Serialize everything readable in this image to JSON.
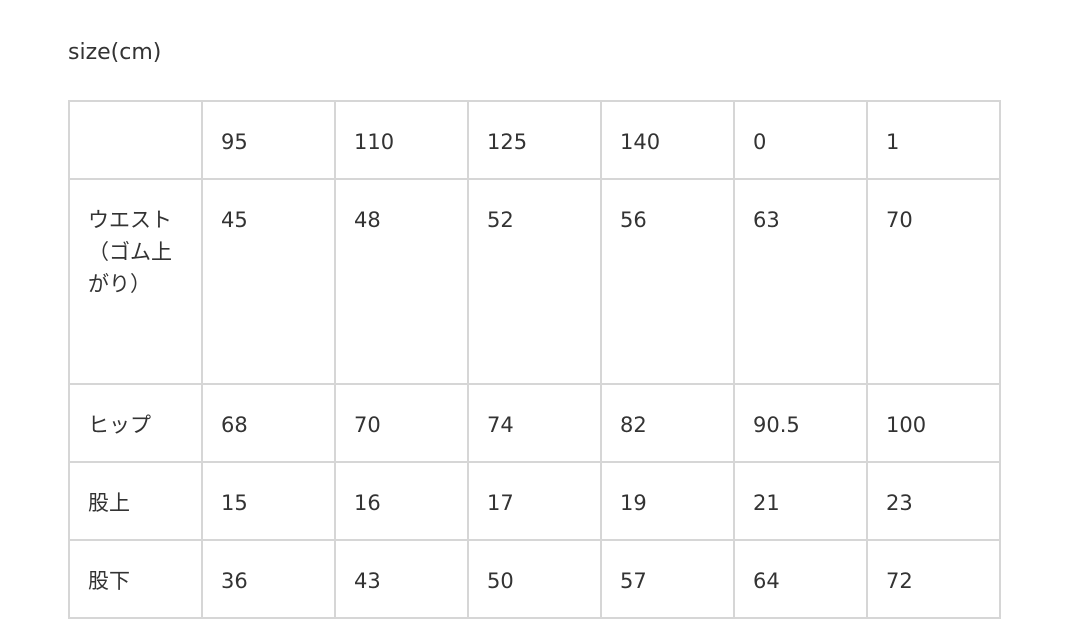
{
  "title": "size(cm)",
  "table": {
    "header": [
      "",
      "95",
      "110",
      "125",
      "140",
      "0",
      "1"
    ],
    "rows": [
      {
        "label": "ウエスト（ゴム上がり）",
        "values": [
          "45",
          "48",
          "52",
          "56",
          "63",
          "70"
        ]
      },
      {
        "label": "ヒップ",
        "values": [
          "68",
          "70",
          "74",
          "82",
          "90.5",
          "100"
        ]
      },
      {
        "label": "股上",
        "values": [
          "15",
          "16",
          "17",
          "19",
          "21",
          "23"
        ]
      },
      {
        "label": "股下",
        "values": [
          "36",
          "43",
          "50",
          "57",
          "64",
          "72"
        ]
      }
    ]
  }
}
